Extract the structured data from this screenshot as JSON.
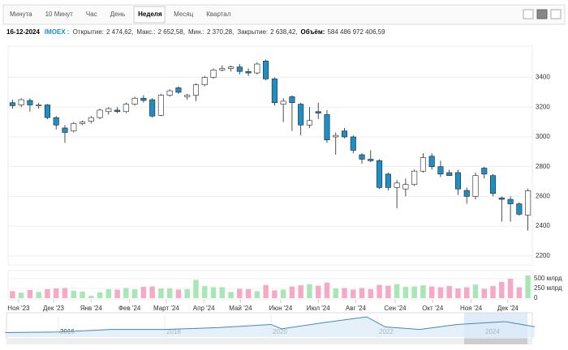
{
  "tabs": [
    "Минута",
    "10 Минут",
    "Час",
    "День",
    "Неделя",
    "Месяц",
    "Квартал"
  ],
  "active_tab": 4,
  "info": {
    "date": "16-12-2024",
    "ticker": "IMOEX :",
    "fields": [
      {
        "label": "Открытие:",
        "value": "2 474,62,"
      },
      {
        "label": "Макс.:",
        "value": "2 652,58,"
      },
      {
        "label": "Мин.:",
        "value": "2 370,28,"
      },
      {
        "label": "Закрытие:",
        "value": "2 638,42,"
      },
      {
        "label": "Объём:",
        "value": "584 486 972 406,59"
      }
    ]
  },
  "chart_data": {
    "type": "candlestick",
    "up_color": "#ffffff",
    "down_color": "#1b8fc6",
    "volume_up_color": "#a8e6b5",
    "volume_down_color": "#f6a9c4",
    "open": [
      3230,
      3215,
      3245,
      3210,
      3215,
      3130,
      3060,
      3040,
      3090,
      3105,
      3130,
      3170,
      3180,
      3170,
      3220,
      3260,
      3250,
      3145,
      3280,
      3330,
      3270,
      3280,
      3350,
      3400,
      3450,
      3460,
      3470,
      3440,
      3430,
      3510,
      3390,
      3220,
      3270,
      3220,
      3080,
      3170,
      3150,
      3000,
      3040,
      3000,
      2880,
      2850,
      2840,
      2750,
      2660,
      2650,
      2680,
      2770,
      2870,
      2800,
      2760,
      2760,
      2640,
      2600,
      2790,
      2740,
      2590,
      2580,
      2550,
      2474.62
    ],
    "high": [
      3250,
      3260,
      3260,
      3230,
      3220,
      3140,
      3080,
      3100,
      3110,
      3140,
      3190,
      3200,
      3200,
      3230,
      3270,
      3280,
      3260,
      3290,
      3320,
      3340,
      3290,
      3360,
      3410,
      3460,
      3480,
      3480,
      3490,
      3460,
      3500,
      3520,
      3400,
      3260,
      3280,
      3230,
      3200,
      3230,
      3180,
      3030,
      3060,
      3010,
      2890,
      2910,
      2850,
      2760,
      2710,
      2720,
      2780,
      2890,
      2890,
      2840,
      2780,
      2780,
      2660,
      2760,
      2800,
      2750,
      2600,
      2600,
      2560,
      2652.58
    ],
    "low": [
      3190,
      3200,
      3170,
      3190,
      3120,
      3050,
      2960,
      3030,
      3080,
      3090,
      3120,
      3150,
      3160,
      3160,
      3210,
      3230,
      3130,
      3140,
      3270,
      3290,
      3250,
      3240,
      3340,
      3390,
      3440,
      3440,
      3420,
      3410,
      3420,
      3380,
      3210,
      3100,
      3040,
      3010,
      3060,
      3120,
      2960,
      2880,
      2990,
      2890,
      2820,
      2830,
      2650,
      2640,
      2520,
      2600,
      2670,
      2760,
      2780,
      2730,
      2740,
      2610,
      2550,
      2580,
      2720,
      2600,
      2430,
      2430,
      2470,
      2370.28
    ],
    "close": [
      3210,
      3250,
      3215,
      3215,
      3130,
      3080,
      3030,
      3090,
      3100,
      3130,
      3180,
      3190,
      3170,
      3220,
      3260,
      3245,
      3140,
      3280,
      3310,
      3300,
      3280,
      3350,
      3400,
      3450,
      3460,
      3470,
      3440,
      3430,
      3490,
      3390,
      3230,
      3240,
      3230,
      3080,
      3110,
      3160,
      2980,
      3010,
      3000,
      2910,
      2850,
      2840,
      2660,
      2660,
      2690,
      2680,
      2770,
      2860,
      2800,
      2750,
      2740,
      2650,
      2600,
      2740,
      2750,
      2620,
      2580,
      2550,
      2480,
      2638.42
    ],
    "volume": [
      180,
      140,
      210,
      160,
      230,
      250,
      260,
      190,
      170,
      60,
      150,
      230,
      220,
      260,
      230,
      290,
      300,
      250,
      250,
      220,
      230,
      470,
      310,
      280,
      280,
      160,
      240,
      230,
      180,
      340,
      200,
      220,
      300,
      330,
      360,
      320,
      400,
      250,
      260,
      220,
      260,
      230,
      340,
      320,
      360,
      290,
      300,
      330,
      300,
      280,
      310,
      250,
      280,
      350,
      240,
      310,
      420,
      500,
      280,
      584.49
    ],
    "xlim": [
      -0.5,
      59.5
    ],
    "xticks": [
      {
        "value": 0.7,
        "label": "Ноя '23"
      },
      {
        "value": 4.7,
        "label": "Дек '23"
      },
      {
        "value": 9,
        "label": "Янв '24"
      },
      {
        "value": 13.4,
        "label": "Фев '24"
      },
      {
        "value": 17.6,
        "label": "Март '24"
      },
      {
        "value": 21.9,
        "label": "Апр '24"
      },
      {
        "value": 26.1,
        "label": "Май '24"
      },
      {
        "value": 30.7,
        "label": "Июн '24"
      },
      {
        "value": 35,
        "label": "Июл '24"
      },
      {
        "value": 39.3,
        "label": "Авг '24"
      },
      {
        "value": 43.8,
        "label": "Сен '24"
      },
      {
        "value": 48.1,
        "label": "Окт '24"
      },
      {
        "value": 52.5,
        "label": "Ноя '24"
      },
      {
        "value": 56.7,
        "label": "Дек '24"
      }
    ],
    "ylim": [
      2150,
      3610
    ],
    "yticks": [
      2200,
      2400,
      2600,
      2800,
      3000,
      3200,
      3400
    ],
    "grid": true,
    "volume_ylim": [
      0,
      700
    ],
    "volume_yticks": [
      0,
      {
        "value": 250,
        "label": "250 млрд"
      },
      {
        "value": 500,
        "label": "500 млрд"
      }
    ],
    "navigator": {
      "color": "#3f88c5",
      "x": [
        2015,
        2016,
        2017,
        2018,
        2019,
        2020,
        2020.2,
        2021,
        2021.8,
        2022.15,
        2022.8,
        2023.5,
        2024.4,
        2024.96
      ],
      "values": [
        1700,
        1800,
        2200,
        2200,
        2500,
        3000,
        2300,
        3300,
        4200,
        2600,
        2200,
        3000,
        3450,
        2638.42
      ],
      "xlim": [
        2015,
        2025
      ],
      "ylim": [
        1000,
        4600
      ],
      "xticks": [
        2016,
        2018,
        2020,
        2022,
        2024
      ]
    }
  }
}
